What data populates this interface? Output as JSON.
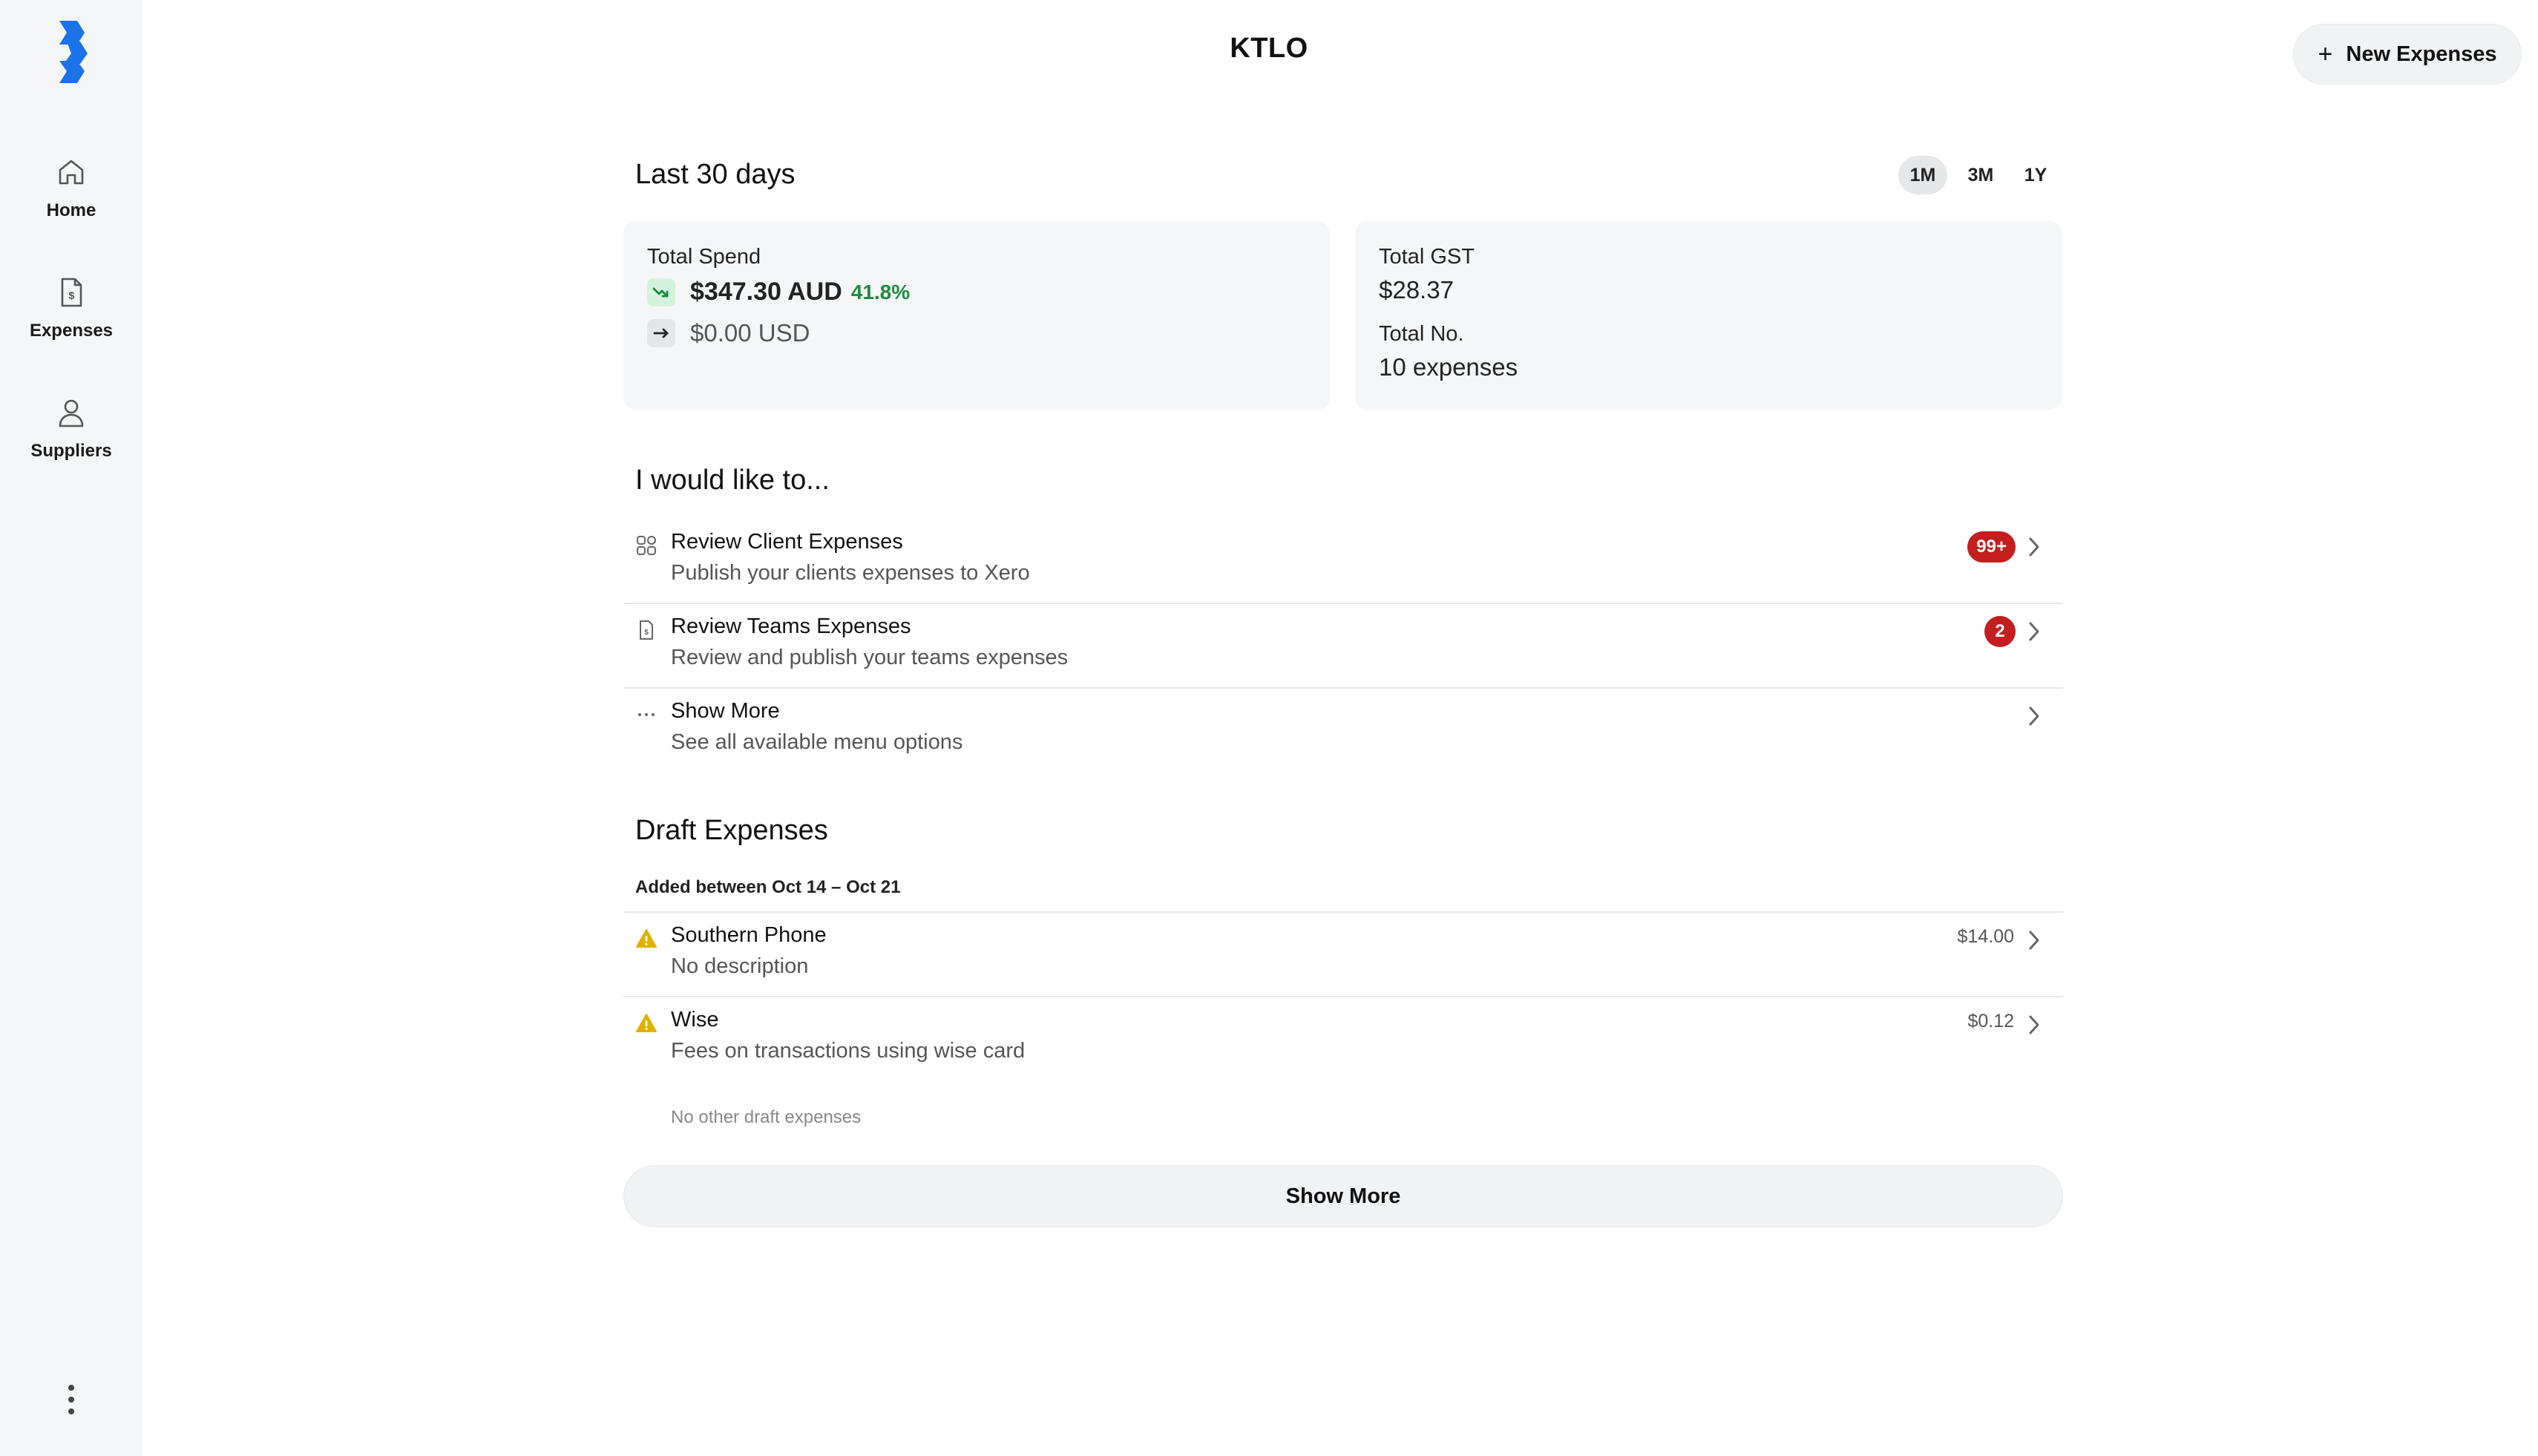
{
  "app": {
    "title": "KTLO",
    "new_expense_label": "New Expenses"
  },
  "sidebar": {
    "items": [
      {
        "label": "Home",
        "icon": "home-icon"
      },
      {
        "label": "Expenses",
        "icon": "receipt-dollar-icon"
      },
      {
        "label": "Suppliers",
        "icon": "person-icon"
      }
    ],
    "more_icon": "kebab-icon"
  },
  "summary": {
    "heading": "Last 30 days",
    "periods": [
      "1M",
      "3M",
      "1Y"
    ],
    "active_period": "1M",
    "total_spend": {
      "label": "Total Spend",
      "aud": "$347.30 AUD",
      "change": "41.8%",
      "usd": "$0.00 USD"
    },
    "gst": {
      "label": "Total GST",
      "value": "$28.37"
    },
    "count": {
      "label": "Total No.",
      "value": "10 expenses"
    }
  },
  "actions": {
    "heading": "I would like to...",
    "items": [
      {
        "title": "Review Client Expenses",
        "subtitle": "Publish your clients expenses to Xero",
        "badge": "99+",
        "icon": "apps-grid-icon"
      },
      {
        "title": "Review Teams Expenses",
        "subtitle": "Review and publish your teams expenses",
        "badge": "2",
        "icon": "receipt-dollar-icon"
      },
      {
        "title": "Show More",
        "subtitle": "See all available menu options",
        "icon": "ellipsis-icon"
      }
    ]
  },
  "drafts": {
    "heading": "Draft Expenses",
    "range": "Added between Oct 14 – Oct 21",
    "items": [
      {
        "title": "Southern Phone",
        "subtitle": "No description",
        "amount": "$14.00",
        "icon": "warning-icon"
      },
      {
        "title": "Wise",
        "subtitle": "Fees on transactions using wise card",
        "amount": "$0.12",
        "icon": "warning-icon"
      }
    ],
    "empty_note": "No other draft expenses",
    "show_more": "Show More"
  },
  "colors": {
    "brand": "#1a73e8",
    "badge": "#c41f1f",
    "positive": "#1c8a3f",
    "warning": "#e2b100",
    "sidebar_bg": "#f5f6f7"
  }
}
